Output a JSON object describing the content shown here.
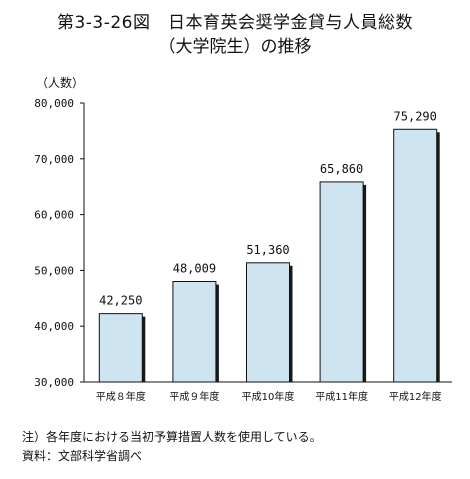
{
  "header": {
    "title": "第3-3-26図　日本育英会奨学金貸与人員総数",
    "subtitle": "（大学院生）の推移"
  },
  "unit_label": "（人数）",
  "notes": {
    "note": "注）各年度における当初予算措置人数を使用している。",
    "source": "資料：文部科学省調べ"
  },
  "colors": {
    "bar_fill": "#cfe4f1",
    "bar_edge": "#111111",
    "bar_shadow": "#1a1a1a"
  },
  "chart_data": {
    "type": "bar",
    "title": "第3-3-26図　日本育英会奨学金貸与人員総数（大学院生）の推移",
    "ylabel": "（人数）",
    "xlabel": "",
    "categories": [
      "平成８年度",
      "平成９年度",
      "平成10年度",
      "平成11年度",
      "平成12年度"
    ],
    "values": [
      42250,
      48009,
      51360,
      65860,
      75290
    ],
    "value_labels": [
      "42,250",
      "48,009",
      "51,360",
      "65,860",
      "75,290"
    ],
    "ylim": [
      30000,
      80000
    ],
    "yticks": [
      30000,
      40000,
      50000,
      60000,
      70000,
      80000
    ],
    "ytick_labels": [
      "30,000",
      "40,000",
      "50,000",
      "60,000",
      "70,000",
      "80,000"
    ],
    "grid": false,
    "legend": "none"
  }
}
